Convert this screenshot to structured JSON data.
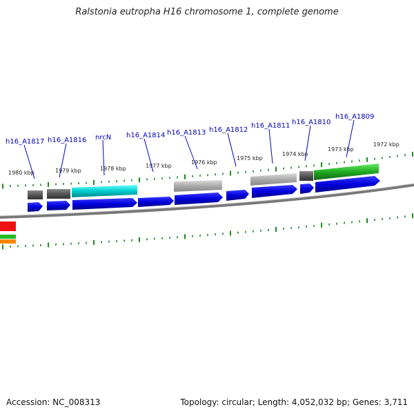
{
  "title": "Ralstonia eutropha H16 chromosome 1, complete genome",
  "footer": {
    "accession": "Accession: NC_008313",
    "topology": "Topology: circular; Length: 4,052,032 bp; Genes: 3,711"
  },
  "kbp_labels": [
    "1980 kbp",
    "1979 kbp",
    "1978 kbp",
    "1977 kbp",
    "1976 kbp",
    "1975 kbp",
    "1974 kbp",
    "1973 kbp",
    "1972 kbp"
  ],
  "gene_labels": [
    "h16_A1817",
    "h16_A1816",
    "nrcN",
    "h16_A1814",
    "h16_A1813",
    "h16_A1812",
    "h16_A1811",
    "h16_A1810",
    "h16_A1809"
  ],
  "colors": {
    "forward_cds": "#0000dd",
    "reverse_dark": "#555555",
    "reverse_light": "#aaaaaa",
    "reverse_cyan": "#00cccc",
    "reverse_green": "#22aa22",
    "backbone": "#777777",
    "tick": "#1a8a1a",
    "gene_label": "#0000bb"
  }
}
